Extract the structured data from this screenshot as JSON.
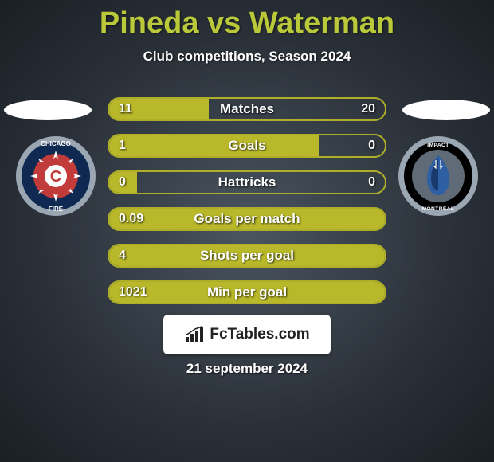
{
  "title": "Pineda vs Waterman",
  "subtitle": "Club competitions, Season 2024",
  "brand": "FcTables.com",
  "date": "21 september 2024",
  "colors": {
    "title": "#b9c93a",
    "bar_fill": "#b8b82a",
    "bar_border": "#aeae28",
    "bar_track": "transparent",
    "text": "#ffffff",
    "bg_center": "#4a5560",
    "bg_edge": "#1a1f25"
  },
  "bars": [
    {
      "label": "Matches",
      "left_val": "11",
      "right_val": "20",
      "fill_pct": 36
    },
    {
      "label": "Goals",
      "left_val": "1",
      "right_val": "0",
      "fill_pct": 76
    },
    {
      "label": "Hattricks",
      "left_val": "0",
      "right_val": "0",
      "fill_pct": 10
    },
    {
      "label": "Goals per match",
      "left_val": "0.09",
      "right_val": "",
      "fill_pct": 100
    },
    {
      "label": "Shots per goal",
      "left_val": "4",
      "right_val": "",
      "fill_pct": 100
    },
    {
      "label": "Min per goal",
      "left_val": "1021",
      "right_val": "",
      "fill_pct": 100
    }
  ],
  "team_left": {
    "name": "Chicago Fire",
    "badge_colors": {
      "outer": "#9aa6b2",
      "ring": "#0f2a52",
      "inner": "#c23b3b",
      "text_ring": "#ffffff",
      "c_bg": "#ffffff",
      "c_fg": "#c23b3b"
    }
  },
  "team_right": {
    "name": "CF Montréal",
    "badge_colors": {
      "outer": "#9aa6b2",
      "ring": "#000000",
      "inner": "#5f6b77",
      "accent": "#2e5fa3",
      "text": "#ffffff"
    }
  }
}
